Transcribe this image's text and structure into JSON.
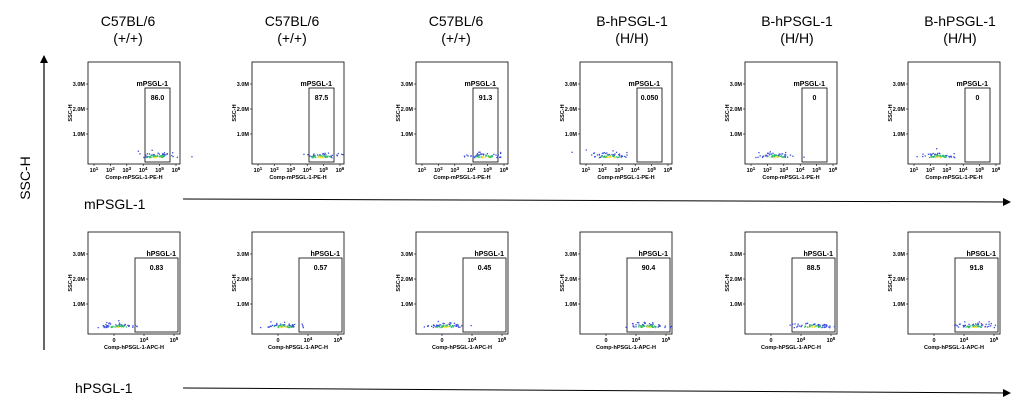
{
  "columns": [
    {
      "line1": "C57BL/6",
      "line2": "(+/+)"
    },
    {
      "line1": "C57BL/6",
      "line2": "(+/+)"
    },
    {
      "line1": "C57BL/6",
      "line2": "(+/+)"
    },
    {
      "line1": "B-hPSGL-1",
      "line2": "(H/H)"
    },
    {
      "line1": "B-hPSGL-1",
      "line2": "(H/H)"
    },
    {
      "line1": "B-hPSGL-1",
      "line2": "(H/H)"
    }
  ],
  "y_axis_label": "SSC-H",
  "row_labels": [
    "mPSGL-1",
    "hPSGL-1"
  ],
  "chart_data": [
    {
      "type": "scatter",
      "row": "mPSGL-1",
      "xlabel": "Comp-mPSGL-1-PE-H",
      "ylabel": "SSC-H",
      "x_scale": "log",
      "x_ticks": [
        "10^1",
        "10^2",
        "10^3",
        "10^4",
        "10^5",
        "10^6"
      ],
      "y_ticks": [
        "1.0M",
        "2.0M",
        "3.0M"
      ],
      "gate_name": "mPSGL-1",
      "panels": [
        {
          "column": "C57BL/6 (+/+)",
          "gate_percent": "86.0"
        },
        {
          "column": "C57BL/6 (+/+)",
          "gate_percent": "87.5"
        },
        {
          "column": "C57BL/6 (+/+)",
          "gate_percent": "91.3"
        },
        {
          "column": "B-hPSGL-1 (H/H)",
          "gate_percent": "0.050"
        },
        {
          "column": "B-hPSGL-1 (H/H)",
          "gate_percent": "0"
        },
        {
          "column": "B-hPSGL-1 (H/H)",
          "gate_percent": "0"
        }
      ]
    },
    {
      "type": "scatter",
      "row": "hPSGL-1",
      "xlabel": "Comp-hPSGL-1-APC-H",
      "ylabel": "SSC-H",
      "x_scale": "log",
      "x_ticks": [
        "0",
        "10^4",
        "10^5"
      ],
      "y_ticks": [
        "1.0M",
        "2.0M",
        "3.0M"
      ],
      "gate_name": "hPSGL-1",
      "panels": [
        {
          "column": "C57BL/6 (+/+)",
          "gate_percent": "0.83"
        },
        {
          "column": "C57BL/6 (+/+)",
          "gate_percent": "0.57"
        },
        {
          "column": "C57BL/6 (+/+)",
          "gate_percent": "0.45"
        },
        {
          "column": "B-hPSGL-1 (H/H)",
          "gate_percent": "90.4"
        },
        {
          "column": "B-hPSGL-1 (H/H)",
          "gate_percent": "88.5"
        },
        {
          "column": "B-hPSGL-1 (H/H)",
          "gate_percent": "91.8"
        }
      ]
    }
  ],
  "colors": {
    "dots_low": "#3a4fd8",
    "dots_mid": "#2fbf6a",
    "dots_high": "#f0e030",
    "frame": "#000000"
  }
}
